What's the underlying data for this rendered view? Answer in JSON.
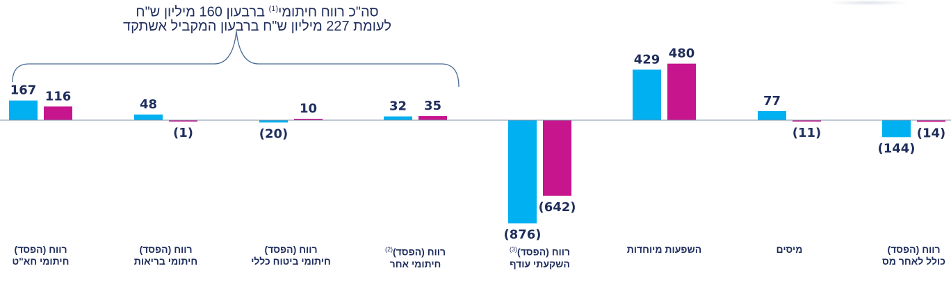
{
  "summary": {
    "line1_before": "סה\"כ רווח חיתומי",
    "line1_note": "(1)",
    "line1_after": " ברבעון 160 מיליון ש\"ח",
    "line2": "לעומת 227 מיליון ש\"ח ברבעון המקביל אשתקד"
  },
  "colors": {
    "current": "#00b0f0",
    "previous": "#c7158e",
    "text": "#1f2d5c",
    "axis": "#7f8fa6"
  },
  "chart_data": {
    "type": "bar",
    "categories": [
      {
        "line1": "רווח (הפסד)",
        "line2": "חיתומי חא\"ט",
        "note": ""
      },
      {
        "line1": "רווח (הפסד)",
        "line2": "חיתומי בריאות",
        "note": ""
      },
      {
        "line1": "רווח (הפסד)",
        "line2": "חיתומי ביטוח כללי",
        "note": ""
      },
      {
        "line1": "רווח (הפסד)",
        "line2": "חיתומי אחר",
        "note": "(2)"
      },
      {
        "line1": "רווח (הפסד)",
        "line2": "השקעתי עודף",
        "note": "(3)"
      },
      {
        "line1": "השפעות מיוחדות",
        "line2": "",
        "note": ""
      },
      {
        "line1": "מיסים",
        "line2": "",
        "note": ""
      },
      {
        "line1": "רווח (הפסד)",
        "line2": "כולל לאחר מס",
        "note": ""
      }
    ],
    "series": [
      {
        "values": [
          167,
          48,
          -20,
          32,
          -876,
          429,
          77,
          -144
        ],
        "labels": [
          "167",
          "48",
          "(20)",
          "32",
          "(876)",
          "429",
          "77",
          "(144)"
        ]
      },
      {
        "values": [
          116,
          -1,
          10,
          35,
          -642,
          480,
          -11,
          -14
        ],
        "labels": [
          "116",
          "(1)",
          "10",
          "35",
          "(642)",
          "480",
          "(11)",
          "(14)"
        ]
      }
    ],
    "title": "",
    "xlabel": "",
    "ylabel": "",
    "grid": false,
    "legend": "none"
  }
}
